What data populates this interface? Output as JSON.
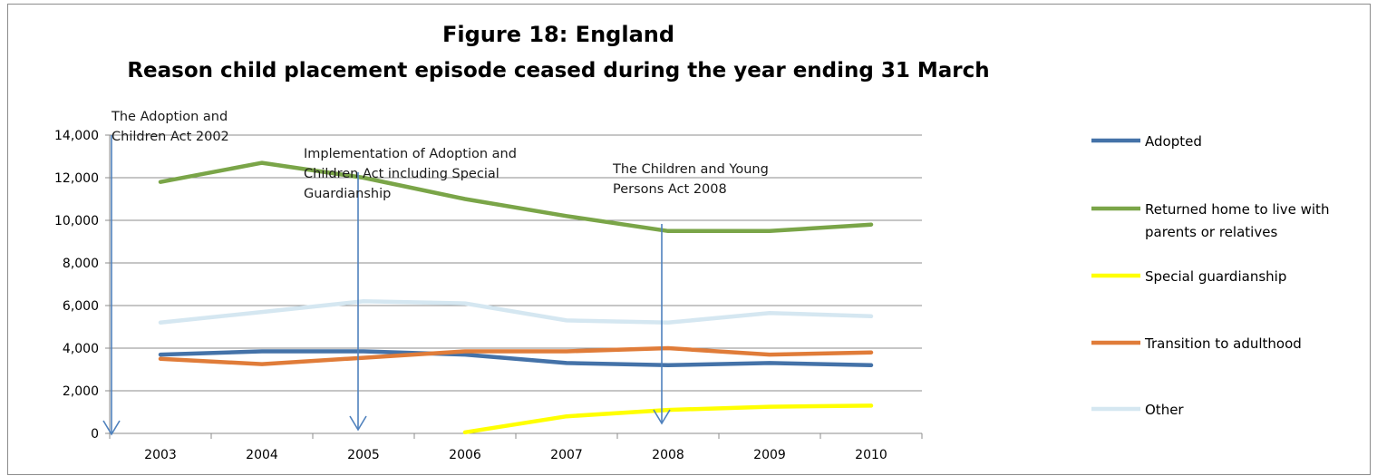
{
  "chart_data": {
    "type": "line",
    "title": "Figure 18: England",
    "subtitle": "Reason child placement episode ceased during the year ending 31 March",
    "xlabel": "",
    "ylabel": "",
    "categories": [
      "2003",
      "2004",
      "2005",
      "2006",
      "2007",
      "2008",
      "2009",
      "2010"
    ],
    "ylim": [
      0,
      14000
    ],
    "yticks": [
      0,
      2000,
      4000,
      6000,
      8000,
      10000,
      12000,
      14000
    ],
    "ytick_labels": [
      "0",
      "2,000",
      "4,000",
      "6,000",
      "8,000",
      "10,000",
      "12,000",
      "14,000"
    ],
    "grid": true,
    "legend_position": "right",
    "series": [
      {
        "name": "Adopted",
        "color": "#4472a8",
        "values": [
          3700,
          3850,
          3850,
          3700,
          3300,
          3200,
          3300,
          3200
        ]
      },
      {
        "name": "Returned home to live with parents or relatives",
        "color": "#7aa548",
        "values": [
          11800,
          12700,
          12000,
          11000,
          10200,
          9500,
          9500,
          9800
        ]
      },
      {
        "name": "Special guardianship",
        "color": "#ffff00",
        "values": [
          null,
          null,
          null,
          50,
          800,
          1100,
          1250,
          1300
        ]
      },
      {
        "name": "Transition to adulthood",
        "color": "#e07c39",
        "values": [
          3500,
          3250,
          3550,
          3850,
          3850,
          4000,
          3700,
          3800
        ]
      },
      {
        "name": "Other",
        "color": "#d5e7f1",
        "values": [
          5200,
          5700,
          6200,
          6100,
          5300,
          5200,
          5650,
          5500
        ]
      }
    ],
    "annotations": [
      {
        "lines": [
          "The Adoption and",
          "Children Act 2002"
        ]
      },
      {
        "lines": [
          "Implementation of Adoption and",
          "Children Act including Special",
          "Guardianship"
        ]
      },
      {
        "lines": [
          "The Children and Young",
          "Persons Act 2008"
        ]
      }
    ]
  }
}
